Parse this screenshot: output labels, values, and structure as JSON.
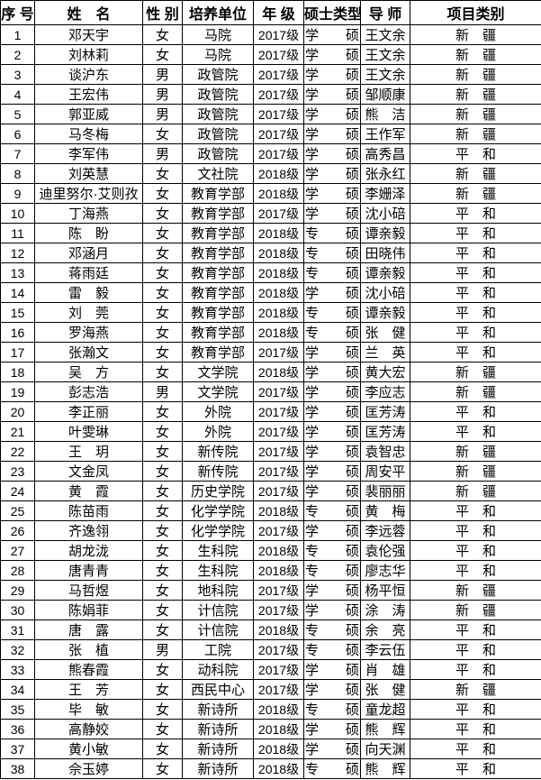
{
  "headers": [
    "序 号",
    "姓　名",
    "性 别",
    "培养单位",
    "年 级",
    "硕士类型",
    "导 师",
    "项目类别"
  ],
  "rows": [
    [
      "1",
      "邓天宇",
      "女",
      "马院",
      "2017级",
      "学　　硕",
      "王文余",
      "新　疆"
    ],
    [
      "2",
      "刘林莉",
      "女",
      "马院",
      "2017级",
      "学　　硕",
      "王文余",
      "新　疆"
    ],
    [
      "3",
      "谈沪东",
      "男",
      "政管院",
      "2017级",
      "学　　硕",
      "王文余",
      "新　疆"
    ],
    [
      "4",
      "王宏伟",
      "男",
      "政管院",
      "2017级",
      "学　　硕",
      "邹顺康",
      "新　疆"
    ],
    [
      "5",
      "郭亚威",
      "男",
      "政管院",
      "2017级",
      "学　　硕",
      "熊　洁",
      "新　疆"
    ],
    [
      "6",
      "马冬梅",
      "女",
      "政管院",
      "2017级",
      "学　　硕",
      "王作军",
      "新　疆"
    ],
    [
      "7",
      "李军伟",
      "男",
      "政管院",
      "2017级",
      "学　　硕",
      "高秀昌",
      "平　和"
    ],
    [
      "8",
      "刘英慧",
      "女",
      "文社院",
      "2018级",
      "学　　硕",
      "张永红",
      "新　疆"
    ],
    [
      "9",
      "迪里努尔·艾则孜",
      "女",
      "教育学部",
      "2018级",
      "学　　硕",
      "李姗泽",
      "新　疆"
    ],
    [
      "10",
      "丁海燕",
      "女",
      "教育学部",
      "2017级",
      "学　　硕",
      "沈小碚",
      "平　和"
    ],
    [
      "11",
      "陈　盼",
      "女",
      "教育学部",
      "2018级",
      "专　　硕",
      "谭亲毅",
      "平　和"
    ],
    [
      "12",
      "邓涵月",
      "女",
      "教育学部",
      "2018级",
      "专　　硕",
      "田晓伟",
      "平　和"
    ],
    [
      "13",
      "蒋雨廷",
      "女",
      "教育学部",
      "2018级",
      "专　　硕",
      "谭亲毅",
      "平　和"
    ],
    [
      "14",
      "雷　毅",
      "女",
      "教育学部",
      "2018级",
      "学　　硕",
      "沈小碚",
      "平　和"
    ],
    [
      "15",
      "刘　莞",
      "女",
      "教育学部",
      "2018级",
      "专　　硕",
      "谭亲毅",
      "平　和"
    ],
    [
      "16",
      "罗海燕",
      "女",
      "教育学部",
      "2018级",
      "专　　硕",
      "张　健",
      "平　和"
    ],
    [
      "17",
      "张瀚文",
      "女",
      "教育学部",
      "2017级",
      "学　　硕",
      "兰　英",
      "平　和"
    ],
    [
      "18",
      "吴　方",
      "女",
      "文学院",
      "2018级",
      "学　　硕",
      "黄大宏",
      "新　疆"
    ],
    [
      "19",
      "彭志浩",
      "男",
      "文学院",
      "2017级",
      "学　　硕",
      "李应志",
      "新　疆"
    ],
    [
      "20",
      "李正丽",
      "女",
      "外院",
      "2017级",
      "学　　硕",
      "匡芳涛",
      "平　和"
    ],
    [
      "21",
      "叶雯琳",
      "女",
      "外院",
      "2017级",
      "学　　硕",
      "匡芳涛",
      "平　和"
    ],
    [
      "22",
      "王　玥",
      "女",
      "新传院",
      "2017级",
      "学　　硕",
      "袁智忠",
      "新　疆"
    ],
    [
      "23",
      "文金凤",
      "女",
      "新传院",
      "2017级",
      "学　　硕",
      "周安平",
      "新　疆"
    ],
    [
      "24",
      "黄　霞",
      "女",
      "历史学院",
      "2017级",
      "学　　硕",
      "裴丽丽",
      "新　疆"
    ],
    [
      "25",
      "陈苗雨",
      "女",
      "化学学院",
      "2018级",
      "专　　硕",
      "黄　梅",
      "平　和"
    ],
    [
      "26",
      "齐逸翎",
      "女",
      "化学学院",
      "2017级",
      "学　　硕",
      "李远蓉",
      "平　和"
    ],
    [
      "27",
      "胡龙泷",
      "女",
      "生科院",
      "2018级",
      "专　　硕",
      "袁伦强",
      "平　和"
    ],
    [
      "28",
      "唐青青",
      "女",
      "生科院",
      "2018级",
      "专　　硕",
      "廖志华",
      "平　和"
    ],
    [
      "29",
      "马哲煜",
      "女",
      "地科院",
      "2017级",
      "学　　硕",
      "杨平恒",
      "新　疆"
    ],
    [
      "30",
      "陈娟菲",
      "女",
      "计信院",
      "2017级",
      "学　　硕",
      "涂　涛",
      "新　疆"
    ],
    [
      "31",
      "唐　露",
      "女",
      "计信院",
      "2018级",
      "专　　硕",
      "余　亮",
      "平　和"
    ],
    [
      "32",
      "张　植",
      "男",
      "工院",
      "2017级",
      "专　　硕",
      "李云伍",
      "平　和"
    ],
    [
      "33",
      "熊春霞",
      "女",
      "动科院",
      "2017级",
      "学　　硕",
      "肖　雄",
      "平　和"
    ],
    [
      "34",
      "王　芳",
      "女",
      "西民中心",
      "2017级",
      "学　　硕",
      "张　健",
      "新　疆"
    ],
    [
      "35",
      "毕　敏",
      "女",
      "新诗所",
      "2018级",
      "专　　硕",
      "童龙超",
      "平　和"
    ],
    [
      "36",
      "高静姣",
      "女",
      "新诗所",
      "2018级",
      "学　　硕",
      "熊　辉",
      "平　和"
    ],
    [
      "37",
      "黄小敏",
      "女",
      "新诗所",
      "2018级",
      "学　　硕",
      "向天渊",
      "平　和"
    ],
    [
      "38",
      "佘玉婷",
      "女",
      "新诗所",
      "2018级",
      "专　　硕",
      "熊　辉",
      "平　和"
    ]
  ]
}
